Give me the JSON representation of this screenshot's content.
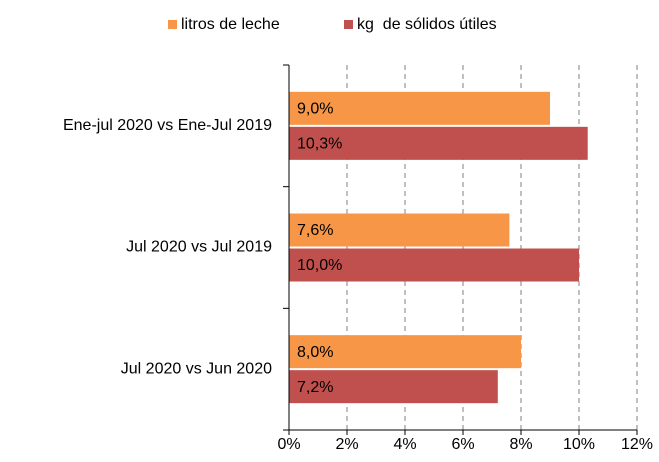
{
  "chart_data": {
    "type": "hbar",
    "categories": [
      "Ene-jul 2020 vs Ene-Jul 2019",
      "Jul 2020 vs Jul 2019",
      "Jul 2020 vs Jun 2020"
    ],
    "series": [
      {
        "name": "litros de leche",
        "color": "#F79646",
        "values": [
          9.0,
          7.6,
          8.0
        ],
        "value_labels": [
          "9,0%",
          "7,6%",
          "8,0%"
        ]
      },
      {
        "name": "kg  de sólidos útiles",
        "color": "#C0504D",
        "values": [
          10.3,
          10.0,
          7.2
        ],
        "value_labels": [
          "10,3%",
          "10,0%",
          "7,2%"
        ]
      }
    ],
    "xlim": [
      0,
      12
    ],
    "xticks": [
      {
        "value": 0,
        "label": "0%"
      },
      {
        "value": 2,
        "label": "2%"
      },
      {
        "value": 4,
        "label": "4%"
      },
      {
        "value": 6,
        "label": "6%"
      },
      {
        "value": 8,
        "label": "8%"
      },
      {
        "value": 10,
        "label": "10%"
      },
      {
        "value": 12,
        "label": "12%"
      }
    ],
    "grid": true,
    "legend": "top"
  }
}
